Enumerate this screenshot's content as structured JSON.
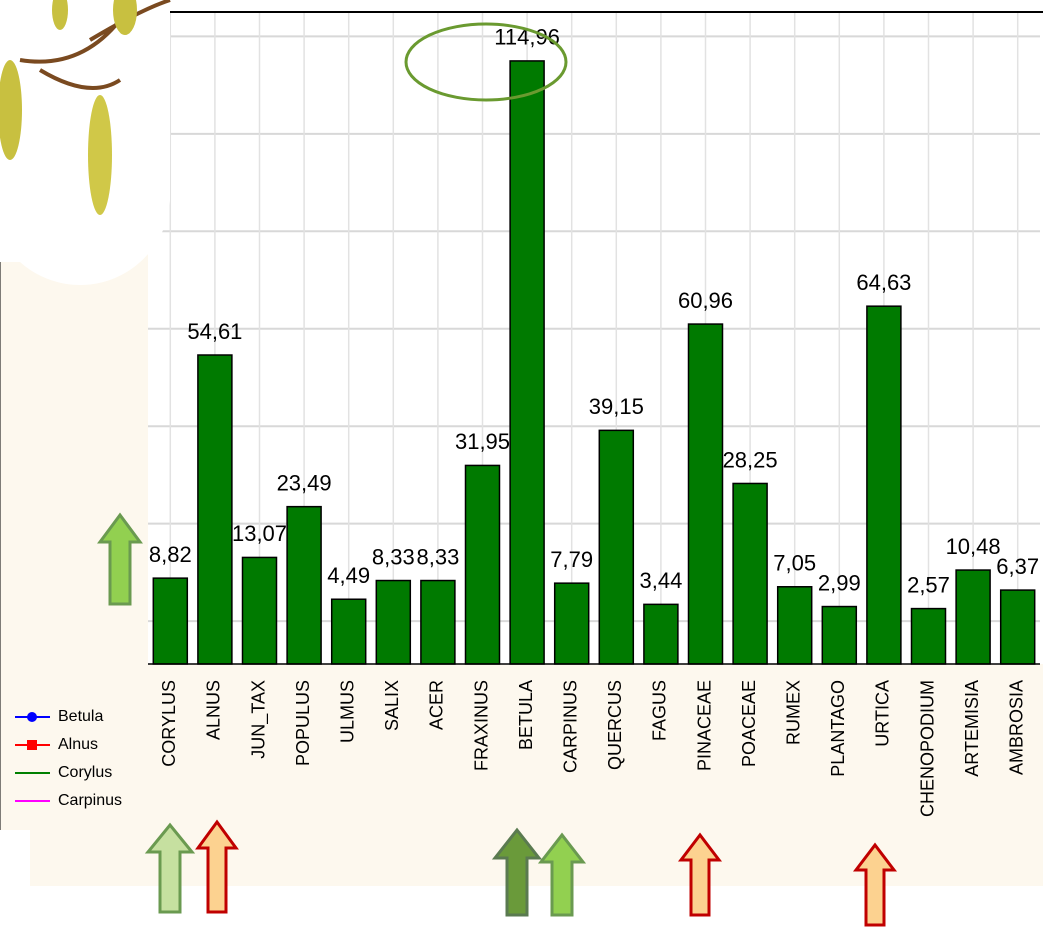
{
  "chart_data": {
    "type": "bar",
    "categories": [
      "CORYLUS",
      "ALNUS",
      "JUN_TAX",
      "POPULUS",
      "ULMUS",
      "SALIX",
      "ACER",
      "FRAXINUS",
      "BETULA",
      "CARPINUS",
      "QUERCUS",
      "FAGUS",
      "PINACEAE",
      "POACEAE",
      "RUMEX",
      "PLANTAGO",
      "URTICA",
      "CHENOPODIUM",
      "ARTEMISIA",
      "AMBROSIA"
    ],
    "values": [
      8.82,
      54.61,
      13.07,
      23.49,
      4.49,
      8.33,
      8.33,
      31.95,
      114.96,
      7.79,
      39.15,
      3.44,
      60.96,
      28.25,
      7.05,
      2.99,
      64.63,
      2.57,
      10.48,
      6.37
    ],
    "value_labels": [
      "8,82",
      "54,61",
      "13,07",
      "23,49",
      "4,49",
      "8,33",
      "8,33",
      "31,95",
      "114,96",
      "7,79",
      "39,15",
      "3,44",
      "60,96",
      "28,25",
      "7,05",
      "2,99",
      "64,63",
      "2,57",
      "10,48",
      "6,37"
    ],
    "color": "#007a00",
    "ylim": [
      -8.8,
      125
    ],
    "yticks": [
      0,
      20,
      40,
      60,
      80,
      100,
      120
    ],
    "grid": true,
    "legend": [
      {
        "name": "Betula",
        "color": "#0000ff"
      },
      {
        "name": "Alnus",
        "color": "#ff0000"
      },
      {
        "name": "Corylus",
        "color": "#008000"
      },
      {
        "name": "Carpinus",
        "color": "#ff00ff"
      }
    ]
  }
}
